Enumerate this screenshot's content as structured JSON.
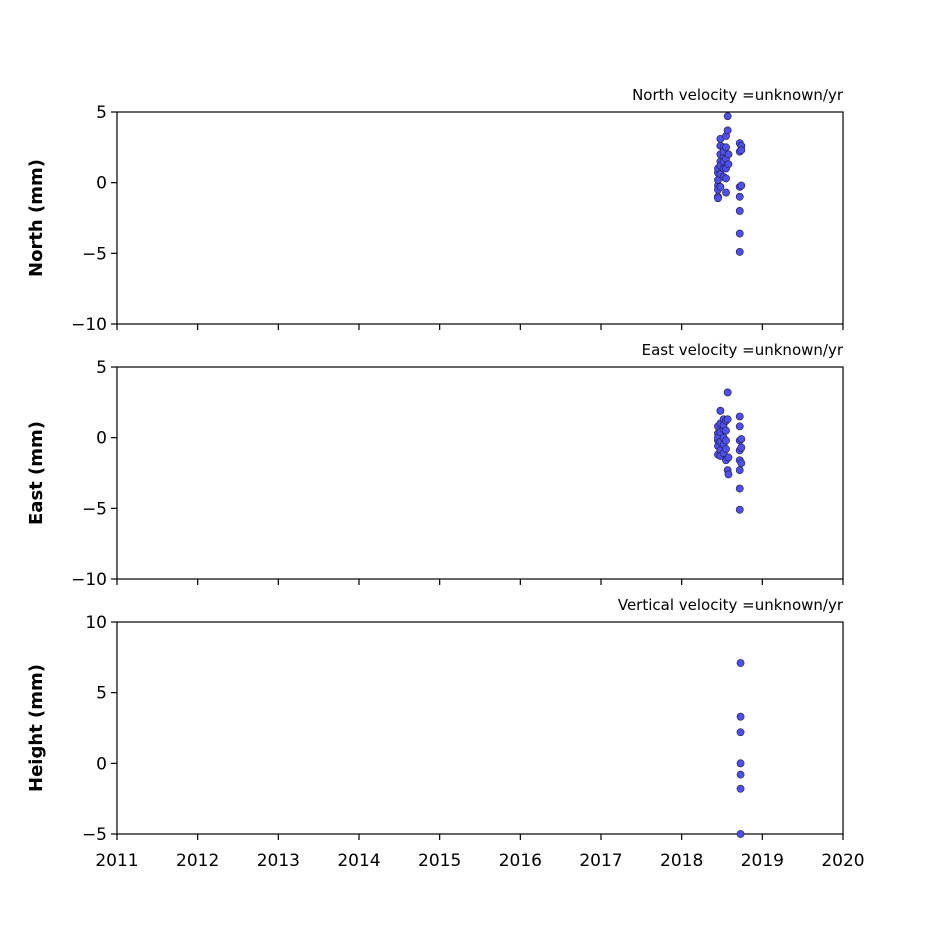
{
  "chart_data": [
    {
      "type": "scatter",
      "title": "North velocity =unknown/yr",
      "y_label": "North (mm)",
      "color": "#4f4ff0",
      "edgecolor": "#1a1a40",
      "x": [
        2018.45,
        2018.45,
        2018.45,
        2018.45,
        2018.45,
        2018.45,
        2018.45,
        2018.48,
        2018.48,
        2018.48,
        2018.48,
        2018.48,
        2018.48,
        2018.48,
        2018.52,
        2018.52,
        2018.52,
        2018.52,
        2018.52,
        2018.52,
        2018.55,
        2018.55,
        2018.55,
        2018.55,
        2018.55,
        2018.55,
        2018.57,
        2018.57,
        2018.58,
        2018.58,
        2018.72,
        2018.72,
        2018.72,
        2018.72,
        2018.72,
        2018.72,
        2018.72,
        2018.74,
        2018.74,
        2018.74
      ],
      "y": [
        0.7,
        -0.2,
        -0.5,
        -1.0,
        -1.1,
        1.0,
        0.2,
        3.1,
        2.0,
        1.5,
        1.2,
        0.6,
        -0.3,
        2.6,
        2.5,
        1.8,
        1.0,
        0.4,
        2.2,
        1.5,
        3.3,
        2.5,
        1.7,
        1.0,
        0.3,
        -0.7,
        4.7,
        3.7,
        2.0,
        1.3,
        2.8,
        2.2,
        -0.3,
        -1.0,
        -2.0,
        -3.6,
        -4.9,
        2.6,
        2.3,
        -0.2
      ],
      "xlim": [
        2011,
        2020
      ],
      "xticks": [
        2011,
        2012,
        2013,
        2014,
        2015,
        2016,
        2017,
        2018,
        2019,
        2020
      ],
      "ylim": [
        -10,
        5
      ],
      "yticks": [
        {
          "value": -10,
          "label": "−10"
        },
        {
          "value": -5,
          "label": "−5"
        },
        0,
        5
      ]
    },
    {
      "type": "scatter",
      "title": "East velocity =unknown/yr",
      "y_label": "East (mm)",
      "color": "#4f4ff0",
      "edgecolor": "#1a1a40",
      "x": [
        2018.45,
        2018.45,
        2018.45,
        2018.45,
        2018.45,
        2018.45,
        2018.48,
        2018.48,
        2018.48,
        2018.48,
        2018.48,
        2018.48,
        2018.52,
        2018.52,
        2018.52,
        2018.52,
        2018.52,
        2018.52,
        2018.55,
        2018.55,
        2018.55,
        2018.55,
        2018.55,
        2018.57,
        2018.57,
        2018.57,
        2018.58,
        2018.58,
        2018.72,
        2018.72,
        2018.72,
        2018.72,
        2018.72,
        2018.72,
        2018.72,
        2018.72,
        2018.74,
        2018.74,
        2018.74
      ],
      "y": [
        0.3,
        -0.2,
        -0.6,
        -1.2,
        0.8,
        0.0,
        1.9,
        1.0,
        0.4,
        -0.3,
        -0.9,
        -1.3,
        1.3,
        0.6,
        0.0,
        -0.5,
        -1.1,
        0.9,
        1.2,
        0.5,
        -0.2,
        -0.8,
        -1.6,
        3.2,
        1.3,
        -2.3,
        -2.6,
        -1.4,
        1.5,
        0.8,
        -0.2,
        -0.9,
        -1.6,
        -2.3,
        -3.6,
        -5.1,
        -0.1,
        -0.7,
        -1.8
      ],
      "xlim": [
        2011,
        2020
      ],
      "xticks": [
        2011,
        2012,
        2013,
        2014,
        2015,
        2016,
        2017,
        2018,
        2019,
        2020
      ],
      "ylim": [
        -10,
        5
      ],
      "yticks": [
        {
          "value": -10,
          "label": "−10"
        },
        {
          "value": -5,
          "label": "−5"
        },
        0,
        5
      ]
    },
    {
      "type": "scatter",
      "title": "Vertical velocity =unknown/yr",
      "y_label": "Height (mm)",
      "color": "#4f4ff0",
      "edgecolor": "#1a1a40",
      "x": [
        2018.73,
        2018.73,
        2018.73,
        2018.73,
        2018.73,
        2018.73,
        2018.73
      ],
      "y": [
        7.1,
        3.3,
        2.2,
        0.0,
        -0.8,
        -1.8,
        -5.0
      ],
      "xlim": [
        2011,
        2020
      ],
      "xticks": [
        2011,
        2012,
        2013,
        2014,
        2015,
        2016,
        2017,
        2018,
        2019,
        2020
      ],
      "ylim": [
        -5,
        10
      ],
      "yticks": [
        {
          "value": -5,
          "label": "−5"
        },
        0,
        5,
        10
      ]
    }
  ]
}
